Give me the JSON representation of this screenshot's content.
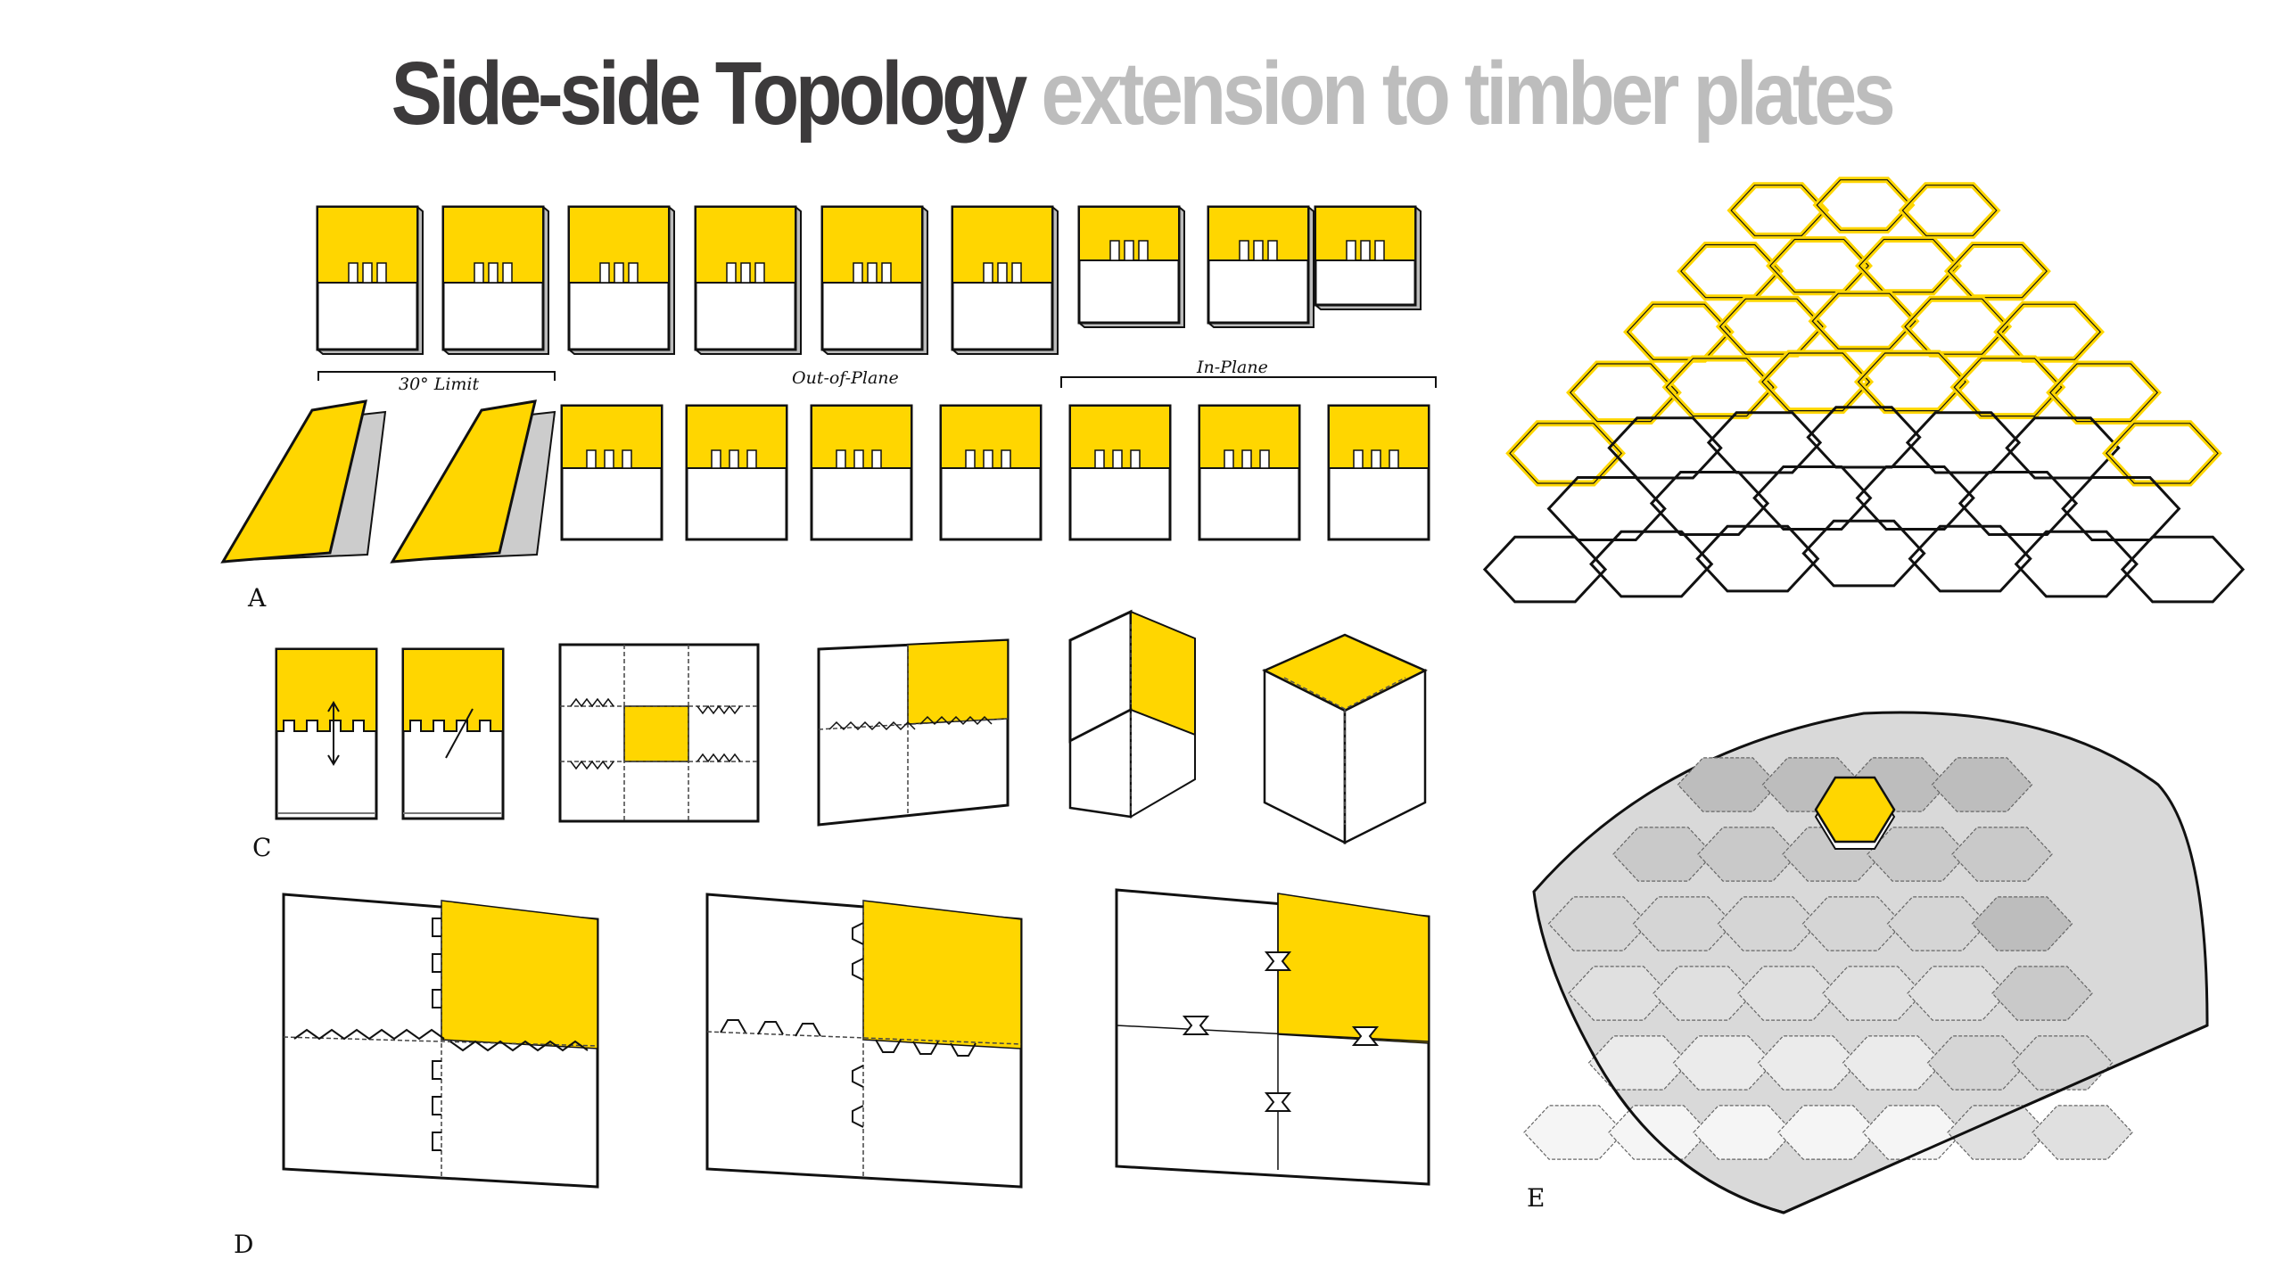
{
  "title": {
    "dark": "Side-side Topology",
    "grey": "extension to timber plates"
  },
  "panel_a": {
    "letter": "A",
    "labels": {
      "limit": "30° Limit",
      "out_of_plane": "Out-of-Plane",
      "in_plane": "In-Plane"
    }
  },
  "panel_c": {
    "letter": "C"
  },
  "panel_d": {
    "letter": "D"
  },
  "panel_e": {
    "letter": "E"
  },
  "colors": {
    "accent_yellow": "#ffd600",
    "ink": "#111111",
    "title_dark": "#3c3a3b",
    "title_grey": "#bdbdbd"
  }
}
